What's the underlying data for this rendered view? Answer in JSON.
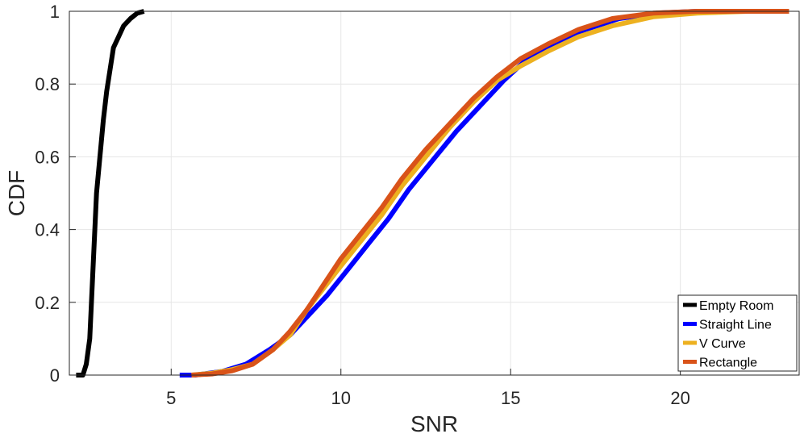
{
  "chart_data": {
    "type": "line",
    "xlabel": "SNR",
    "ylabel": "CDF",
    "xlim": [
      2,
      23.5
    ],
    "ylim": [
      0,
      1
    ],
    "xticks": [
      5,
      10,
      15,
      20
    ],
    "yticks": [
      0,
      0.2,
      0.4,
      0.6,
      0.8,
      1
    ],
    "ytick_labels": [
      "0",
      "0.2",
      "0.4",
      "0.6",
      "0.8",
      "1"
    ],
    "grid": true,
    "legend_position": "bottom-right",
    "series": [
      {
        "name": "Empty Room",
        "color": "#000000",
        "x": [
          2.2,
          2.4,
          2.5,
          2.6,
          2.65,
          2.7,
          2.75,
          2.8,
          2.9,
          3.0,
          3.1,
          3.2,
          3.3,
          3.45,
          3.6,
          3.8,
          4.0,
          4.2
        ],
        "y": [
          0.0,
          0.0,
          0.03,
          0.1,
          0.2,
          0.3,
          0.4,
          0.5,
          0.6,
          0.7,
          0.78,
          0.84,
          0.9,
          0.93,
          0.96,
          0.98,
          0.995,
          1.0
        ]
      },
      {
        "name": "Straight Line",
        "color": "#0000ff",
        "x": [
          5.25,
          5.7,
          6.5,
          7.2,
          7.9,
          8.5,
          9.0,
          9.6,
          10.2,
          10.8,
          11.4,
          12.0,
          12.7,
          13.4,
          14.1,
          14.8,
          15.5,
          16.3,
          17.2,
          18.2,
          19.3,
          20.5,
          22.0,
          23.2
        ],
        "y": [
          0.0,
          0.0,
          0.01,
          0.03,
          0.07,
          0.11,
          0.16,
          0.22,
          0.29,
          0.36,
          0.43,
          0.51,
          0.59,
          0.67,
          0.74,
          0.81,
          0.87,
          0.91,
          0.95,
          0.98,
          0.995,
          1.0,
          1.0,
          1.0
        ]
      },
      {
        "name": "V Curve",
        "color": "#edb120",
        "x": [
          5.6,
          6.2,
          6.8,
          7.4,
          8.0,
          8.5,
          9.0,
          9.5,
          10.0,
          10.6,
          11.2,
          11.8,
          12.5,
          13.2,
          13.9,
          14.6,
          15.3,
          16.1,
          17.0,
          18.0,
          19.2,
          20.5,
          22.0,
          23.2
        ],
        "y": [
          0.0,
          0.005,
          0.015,
          0.03,
          0.07,
          0.11,
          0.18,
          0.24,
          0.3,
          0.37,
          0.44,
          0.52,
          0.6,
          0.68,
          0.75,
          0.81,
          0.85,
          0.89,
          0.93,
          0.96,
          0.985,
          0.995,
          1.0,
          1.0
        ]
      },
      {
        "name": "Rectangle",
        "color": "#d95319",
        "x": [
          5.6,
          6.2,
          6.8,
          7.4,
          8.0,
          8.5,
          9.0,
          9.5,
          10.0,
          10.6,
          11.2,
          11.8,
          12.5,
          13.2,
          13.9,
          14.6,
          15.3,
          16.1,
          17.0,
          18.0,
          19.2,
          20.5,
          22.0,
          23.2
        ],
        "y": [
          0.0,
          0.003,
          0.012,
          0.03,
          0.07,
          0.12,
          0.18,
          0.25,
          0.32,
          0.39,
          0.46,
          0.54,
          0.62,
          0.69,
          0.76,
          0.82,
          0.87,
          0.91,
          0.95,
          0.98,
          0.995,
          1.0,
          1.0,
          1.0
        ]
      }
    ]
  }
}
